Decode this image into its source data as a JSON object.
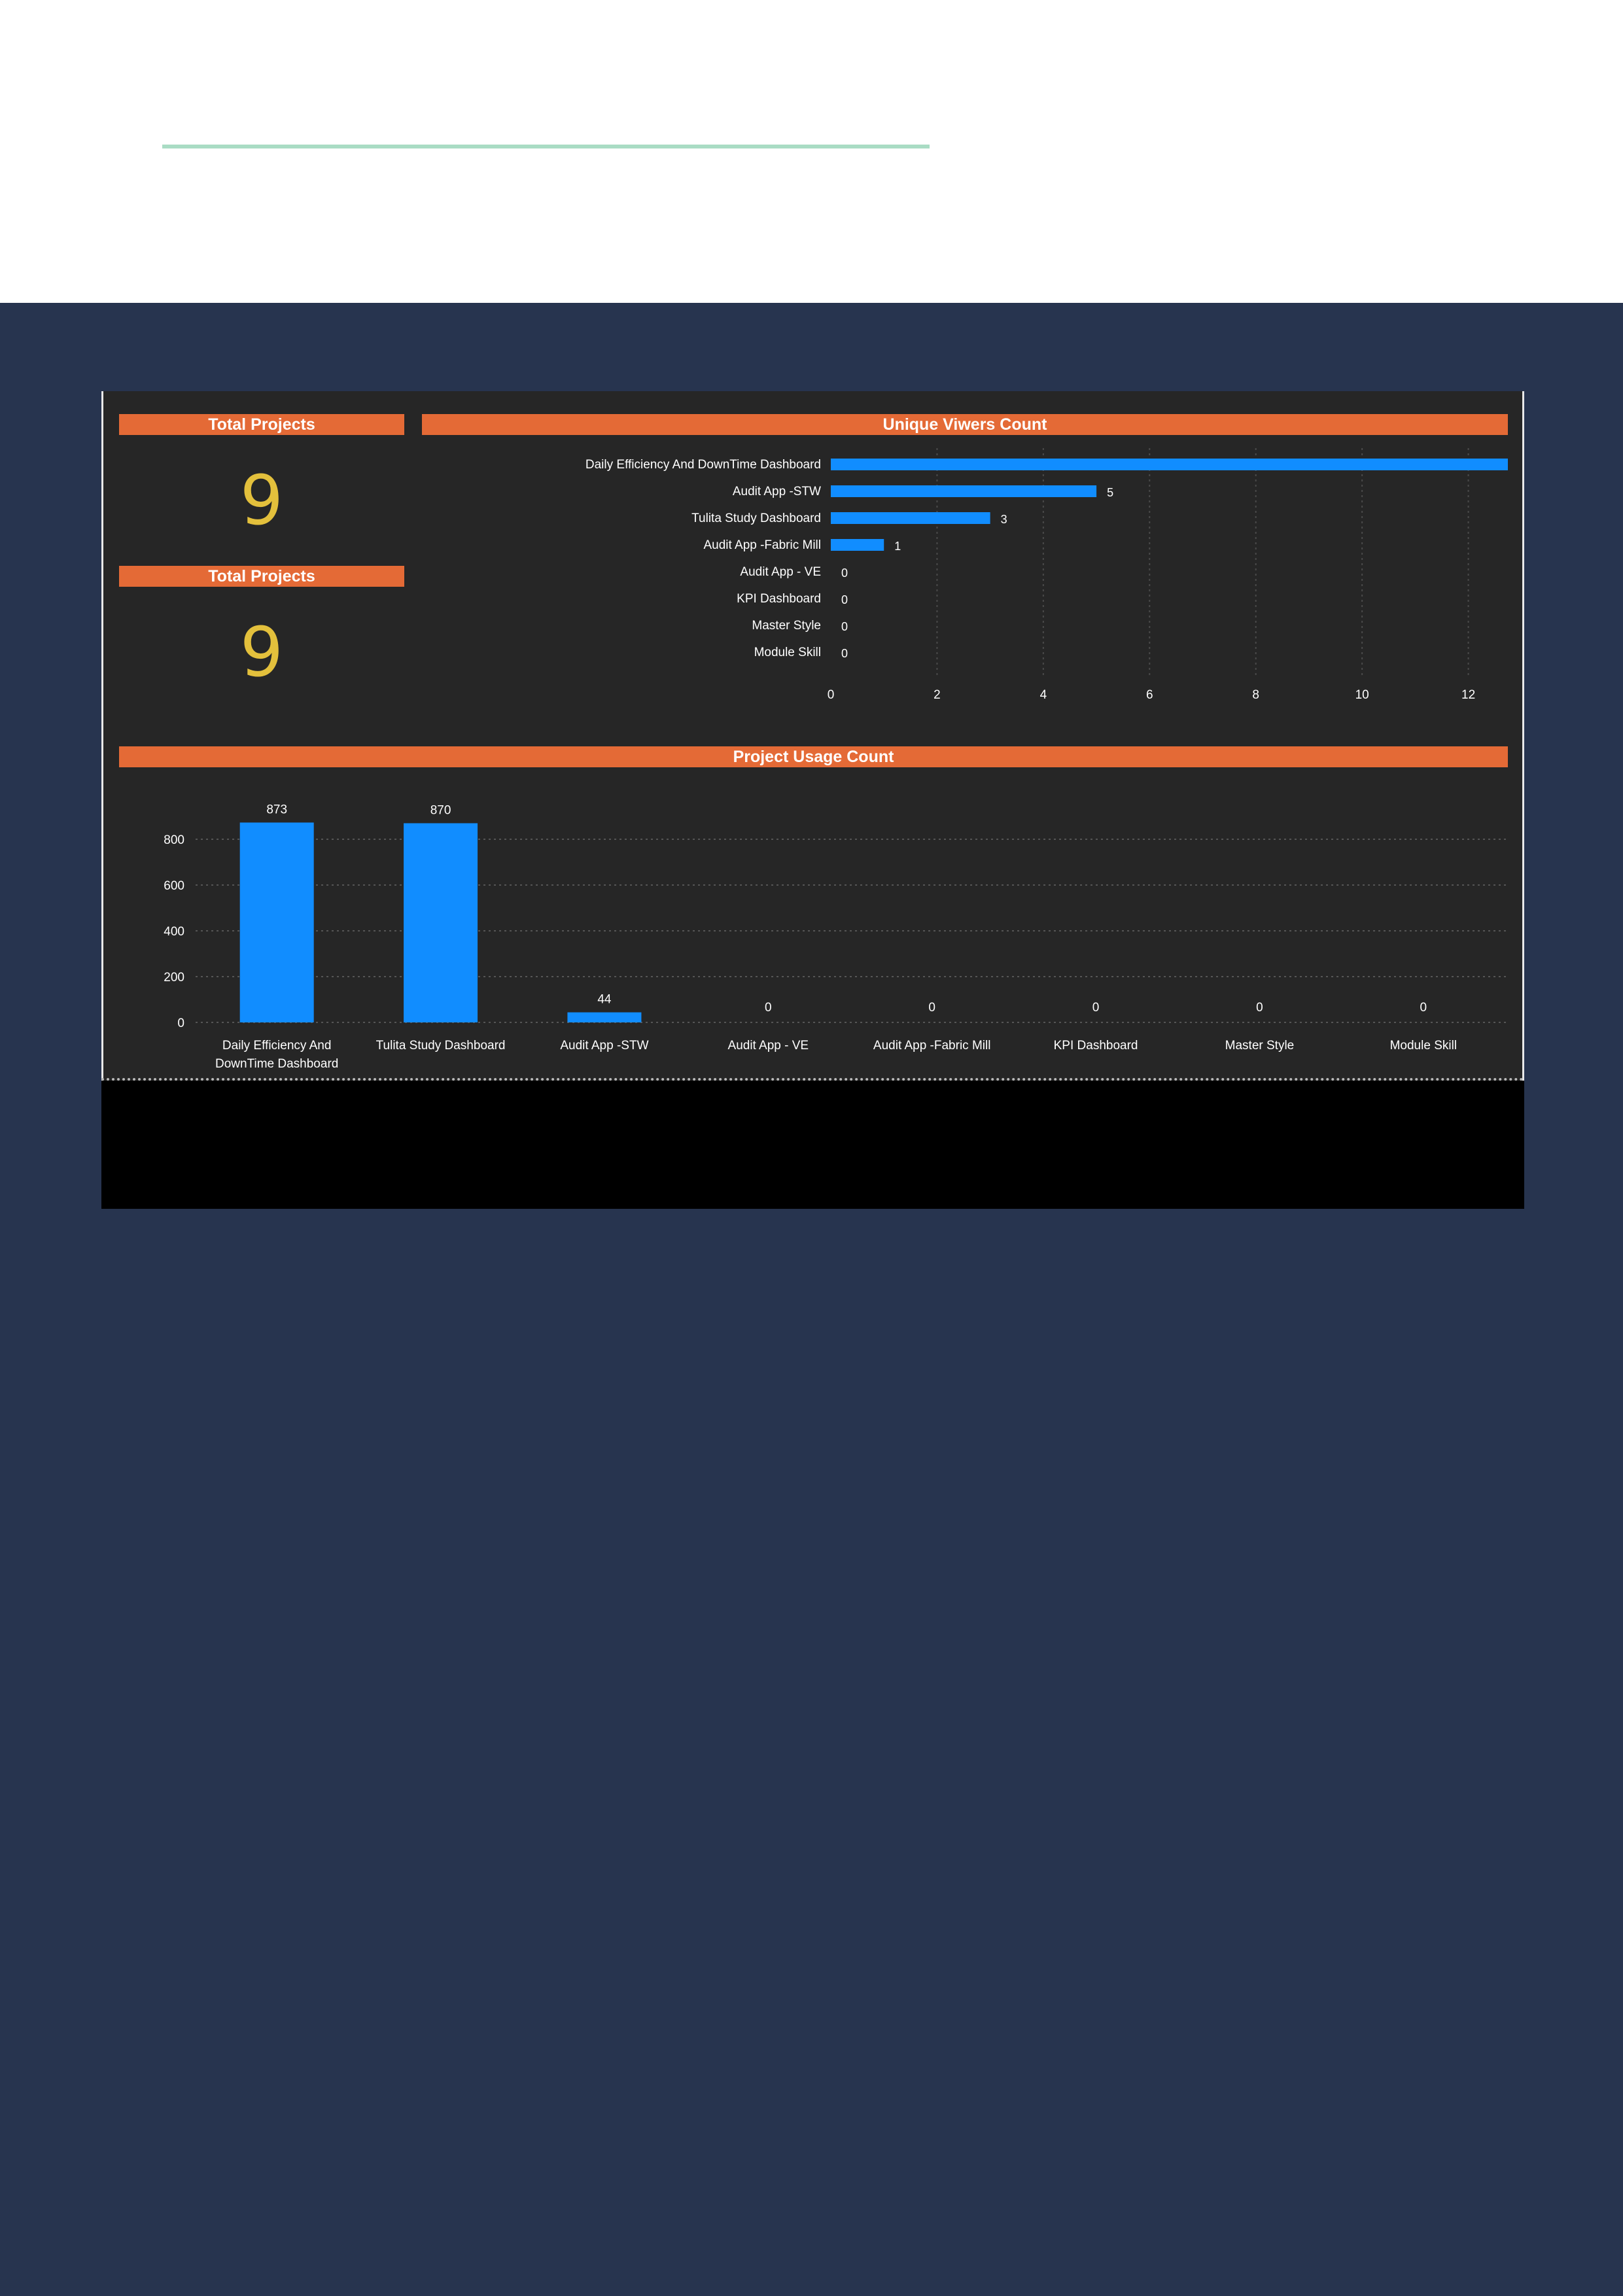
{
  "kpi_cards": [
    {
      "title": "Total Projects",
      "value": "9"
    },
    {
      "title": "Total Projects",
      "value": "9"
    }
  ],
  "colors": {
    "page_background": "#27344f",
    "panel_background": "#262626",
    "header_orange": "#e46a36",
    "bar_blue": "#118dff",
    "kpi_yellow": "#e3c03c"
  },
  "chart_data": [
    {
      "type": "bar",
      "orientation": "horizontal",
      "title": "Unique Viwers Count",
      "categories": [
        "Daily Efficiency And DownTime Dashboard",
        "Audit App -STW",
        "Tulita Study Dashboard",
        "Audit App -Fabric Mill",
        "Audit App - VE",
        "KPI Dashboard",
        "Master Style",
        "Module Skill"
      ],
      "values": [
        14,
        5,
        3,
        1,
        0,
        0,
        0,
        0
      ],
      "xlim": [
        0,
        14
      ],
      "xticks": [
        0,
        2,
        4,
        6,
        8,
        10,
        12,
        14
      ],
      "grid": "vertical dotted",
      "data_labels": true
    },
    {
      "type": "bar",
      "orientation": "vertical",
      "title": "Project Usage Count",
      "categories": [
        [
          "Daily Efficiency And",
          "DownTime Dashboard"
        ],
        [
          "Tulita Study Dashboard"
        ],
        [
          "Audit App -STW"
        ],
        [
          "Audit App - VE"
        ],
        [
          "Audit App -Fabric Mill"
        ],
        [
          "KPI Dashboard"
        ],
        [
          "Master Style"
        ],
        [
          "Module Skill"
        ]
      ],
      "values": [
        873,
        870,
        44,
        0,
        0,
        0,
        0,
        0
      ],
      "ylim": [
        0,
        800
      ],
      "yticks": [
        0,
        200,
        400,
        600,
        800
      ],
      "grid": "horizontal dotted",
      "data_labels": true
    }
  ]
}
